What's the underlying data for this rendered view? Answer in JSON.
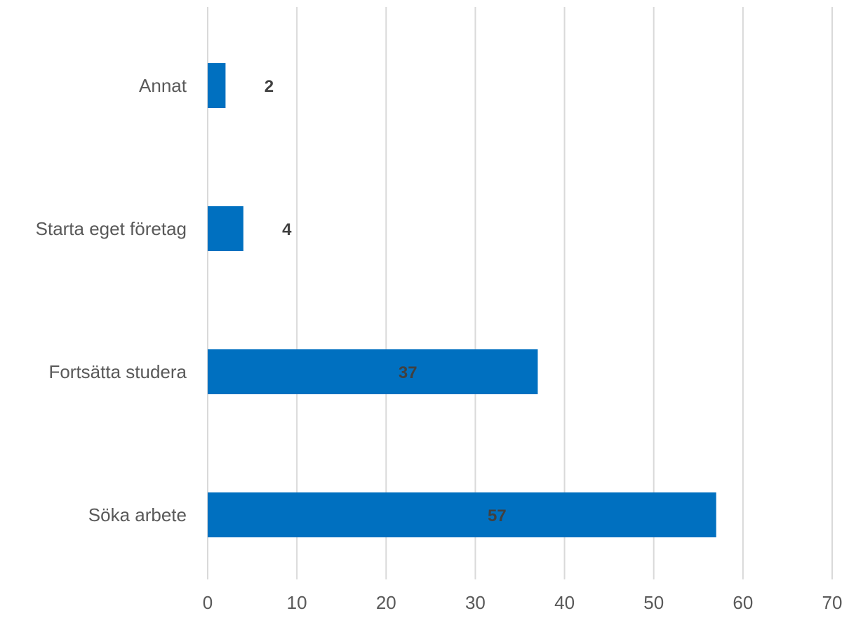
{
  "chart_data": {
    "type": "bar",
    "orientation": "horizontal",
    "title": "",
    "xlabel": "",
    "ylabel": "",
    "categories": [
      "Annat",
      "Starta eget företag",
      "Fortsätta studera",
      "Söka arbete"
    ],
    "values": [
      2,
      4,
      37,
      57
    ],
    "data_labels": [
      "2",
      "4",
      "37",
      "57"
    ],
    "xlim": [
      0,
      70
    ],
    "x_ticks": [
      0,
      10,
      20,
      30,
      40,
      50,
      60,
      70
    ],
    "x_tick_labels": [
      "0",
      "10",
      "20",
      "30",
      "40",
      "50",
      "60",
      "70"
    ],
    "grid": "vertical",
    "legend": "none",
    "bar_color": "#0070c0"
  }
}
